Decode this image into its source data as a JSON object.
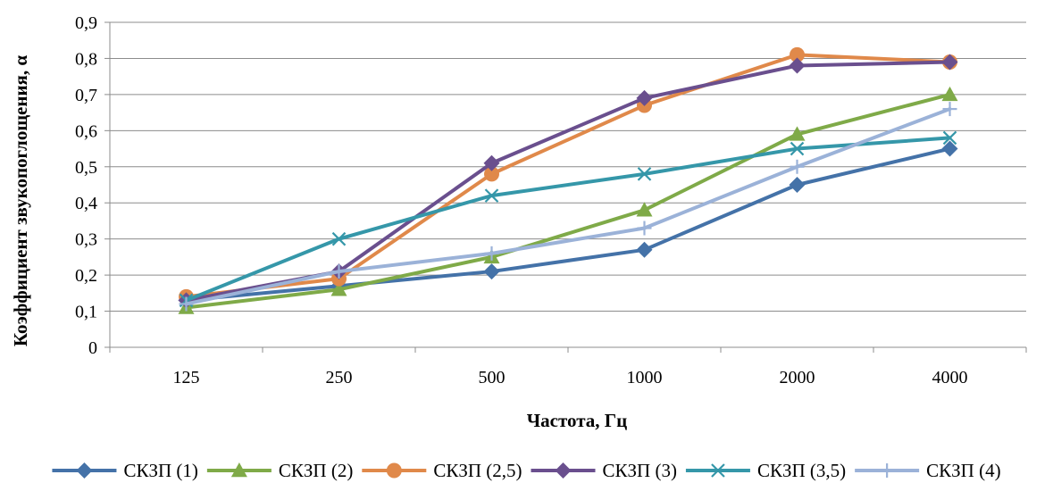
{
  "chart_data": {
    "type": "line",
    "title": "",
    "xlabel": "Частота, Гц",
    "ylabel": "Коэффициент звукопоглощения, α",
    "categories": [
      "125",
      "250",
      "500",
      "1000",
      "2000",
      "4000"
    ],
    "y_ticks": [
      "0",
      "0,1",
      "0,2",
      "0,3",
      "0,4",
      "0,5",
      "0,6",
      "0,7",
      "0,8",
      "0,9"
    ],
    "ylim": [
      0,
      0.9
    ],
    "grid": true,
    "legend_position": "bottom",
    "series": [
      {
        "name": "СКЗП (1)",
        "values": [
          0.13,
          0.17,
          0.21,
          0.27,
          0.45,
          0.55
        ],
        "color": "#4472a8",
        "marker": "diamond"
      },
      {
        "name": "СКЗП (2)",
        "values": [
          0.11,
          0.16,
          0.25,
          0.38,
          0.59,
          0.7
        ],
        "color": "#7faa48",
        "marker": "triangle"
      },
      {
        "name": "СКЗП (2,5)",
        "values": [
          0.14,
          0.19,
          0.48,
          0.67,
          0.81,
          0.79
        ],
        "color": "#e0894a",
        "marker": "circle"
      },
      {
        "name": "СКЗП (3)",
        "values": [
          0.13,
          0.21,
          0.51,
          0.69,
          0.78,
          0.79
        ],
        "color": "#6a4f8e",
        "marker": "diamond"
      },
      {
        "name": "СКЗП (3,5)",
        "values": [
          0.13,
          0.3,
          0.42,
          0.48,
          0.55,
          0.58
        ],
        "color": "#3597a9",
        "marker": "x"
      },
      {
        "name": "СКЗП (4)",
        "values": [
          0.12,
          0.21,
          0.26,
          0.33,
          0.5,
          0.66
        ],
        "color": "#9bb2d8",
        "marker": "plus"
      }
    ]
  }
}
